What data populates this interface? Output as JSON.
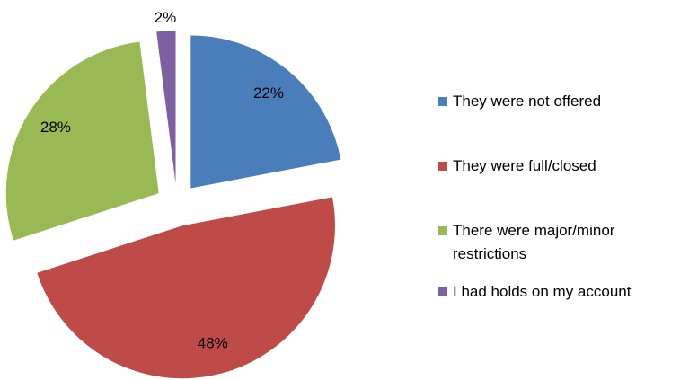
{
  "chart_data": {
    "type": "pie",
    "categories": [
      "They were not offered",
      "They were full/closed",
      "There were major/minor restrictions",
      "I had holds on my account"
    ],
    "values": [
      22,
      48,
      28,
      2
    ],
    "value_labels": [
      "22%",
      "48%",
      "28%",
      "2%"
    ],
    "colors": [
      "#4a7ebb",
      "#be4b48",
      "#98b954",
      "#7d60a0"
    ],
    "exploded": true,
    "legend": "right"
  }
}
